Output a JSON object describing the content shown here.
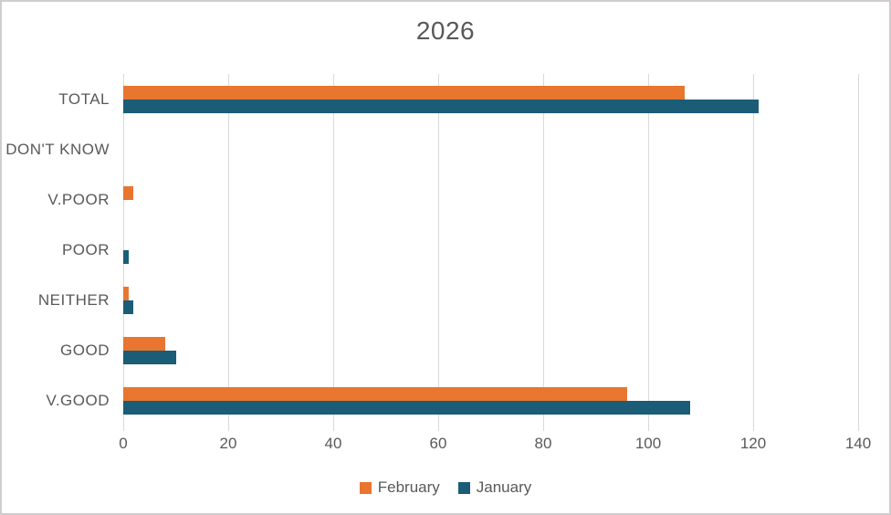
{
  "chart_data": {
    "type": "bar",
    "orientation": "horizontal",
    "title": "2026",
    "categories": [
      "TOTAL",
      "DON'T KNOW",
      "V.POOR",
      "POOR",
      "NEITHER",
      "GOOD",
      "V.GOOD"
    ],
    "series": [
      {
        "name": "February",
        "color": "#e8762f",
        "values": [
          107,
          0,
          2,
          0,
          1,
          8,
          96
        ]
      },
      {
        "name": "January",
        "color": "#1b5c77",
        "values": [
          121,
          0,
          0,
          1,
          2,
          10,
          108
        ]
      }
    ],
    "xlim": [
      0,
      140
    ],
    "xticks": [
      0,
      20,
      40,
      60,
      80,
      100,
      120,
      140
    ],
    "xlabel": "",
    "ylabel": "",
    "grid": "vertical-only",
    "gridline_color": "#d9d9d9",
    "legend_position": "bottom",
    "text_color": "#595959"
  }
}
